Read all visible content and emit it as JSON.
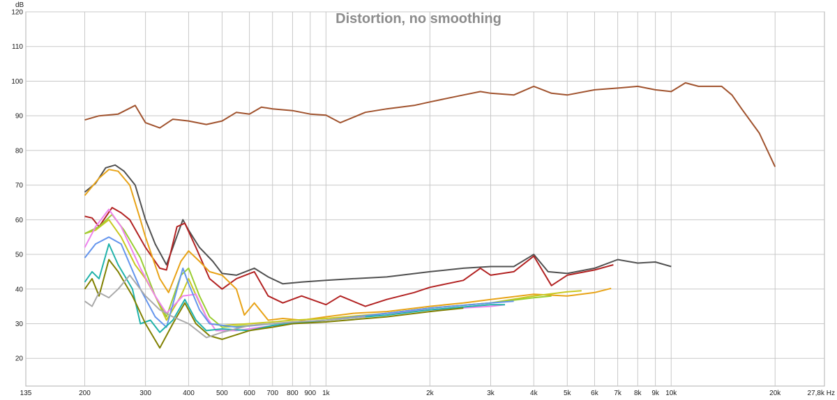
{
  "chart_data": {
    "type": "line",
    "title": "Distortion, no smoothing",
    "ylabel": "dB",
    "xunit": "Hz",
    "xscale": "log",
    "xlim": [
      135,
      27800
    ],
    "ylim": [
      12,
      120
    ],
    "grid": true,
    "x_tick_labels": [
      {
        "x": 135,
        "label": "135"
      },
      {
        "x": 200,
        "label": "200"
      },
      {
        "x": 300,
        "label": "300"
      },
      {
        "x": 400,
        "label": "400"
      },
      {
        "x": 500,
        "label": "500"
      },
      {
        "x": 600,
        "label": "600"
      },
      {
        "x": 700,
        "label": "700"
      },
      {
        "x": 800,
        "label": "800"
      },
      {
        "x": 900,
        "label": "900"
      },
      {
        "x": 1000,
        "label": "1k"
      },
      {
        "x": 2000,
        "label": "2k"
      },
      {
        "x": 3000,
        "label": "3k"
      },
      {
        "x": 4000,
        "label": "4k"
      },
      {
        "x": 5000,
        "label": "5k"
      },
      {
        "x": 6000,
        "label": "6k"
      },
      {
        "x": 7000,
        "label": "7k"
      },
      {
        "x": 8000,
        "label": "8k"
      },
      {
        "x": 9000,
        "label": "9k"
      },
      {
        "x": 10000,
        "label": "10k"
      },
      {
        "x": 20000,
        "label": "20k"
      },
      {
        "x": 27800,
        "label": "27,8k Hz"
      }
    ],
    "y_ticks": [
      20,
      30,
      40,
      50,
      60,
      70,
      80,
      90,
      100,
      110,
      120
    ],
    "series": [
      {
        "color": "#a0522d",
        "points": [
          [
            200,
            88.8
          ],
          [
            220,
            90
          ],
          [
            250,
            90.5
          ],
          [
            280,
            93
          ],
          [
            300,
            88
          ],
          [
            330,
            86.5
          ],
          [
            360,
            89
          ],
          [
            400,
            88.5
          ],
          [
            450,
            87.5
          ],
          [
            500,
            88.5
          ],
          [
            550,
            91
          ],
          [
            600,
            90.5
          ],
          [
            650,
            92.5
          ],
          [
            700,
            92
          ],
          [
            800,
            91.5
          ],
          [
            900,
            90.5
          ],
          [
            1000,
            90.2
          ],
          [
            1100,
            88
          ],
          [
            1300,
            91
          ],
          [
            1500,
            92
          ],
          [
            1800,
            93
          ],
          [
            2000,
            94
          ],
          [
            2500,
            96
          ],
          [
            2800,
            97
          ],
          [
            3000,
            96.5
          ],
          [
            3500,
            96
          ],
          [
            4000,
            98.5
          ],
          [
            4500,
            96.5
          ],
          [
            5000,
            96
          ],
          [
            6000,
            97.5
          ],
          [
            7000,
            98
          ],
          [
            8000,
            98.5
          ],
          [
            9000,
            97.5
          ],
          [
            10000,
            97
          ],
          [
            11000,
            99.5
          ],
          [
            12000,
            98.5
          ],
          [
            14000,
            98.5
          ],
          [
            15000,
            96
          ],
          [
            16000,
            92
          ],
          [
            18000,
            85
          ],
          [
            20000,
            75.3
          ]
        ]
      },
      {
        "color": "#505050",
        "points": [
          [
            200,
            68
          ],
          [
            215,
            70.5
          ],
          [
            230,
            75
          ],
          [
            245,
            75.8
          ],
          [
            260,
            74
          ],
          [
            280,
            70
          ],
          [
            300,
            60
          ],
          [
            320,
            53
          ],
          [
            345,
            47
          ],
          [
            360,
            52
          ],
          [
            385,
            60
          ],
          [
            400,
            57
          ],
          [
            430,
            52
          ],
          [
            470,
            48
          ],
          [
            500,
            44.5
          ],
          [
            550,
            44
          ],
          [
            620,
            46
          ],
          [
            680,
            43.5
          ],
          [
            750,
            41.5
          ],
          [
            850,
            42
          ],
          [
            1000,
            42.5
          ],
          [
            1200,
            43
          ],
          [
            1500,
            43.5
          ],
          [
            2000,
            45
          ],
          [
            2500,
            46
          ],
          [
            3000,
            46.5
          ],
          [
            3500,
            46.5
          ],
          [
            4000,
            50
          ],
          [
            4400,
            45
          ],
          [
            5000,
            44.5
          ],
          [
            6000,
            46
          ],
          [
            7000,
            48.5
          ],
          [
            8000,
            47.5
          ],
          [
            9000,
            47.8
          ],
          [
            10000,
            46.5
          ]
        ]
      },
      {
        "color": "#b22222",
        "points": [
          [
            200,
            61
          ],
          [
            210,
            60.5
          ],
          [
            220,
            58
          ],
          [
            240,
            63.5
          ],
          [
            255,
            62
          ],
          [
            270,
            60
          ],
          [
            300,
            52
          ],
          [
            330,
            46
          ],
          [
            345,
            45.5
          ],
          [
            370,
            58
          ],
          [
            390,
            59
          ],
          [
            420,
            52
          ],
          [
            460,
            43
          ],
          [
            500,
            40
          ],
          [
            550,
            43
          ],
          [
            620,
            45
          ],
          [
            680,
            38
          ],
          [
            750,
            36
          ],
          [
            850,
            38
          ],
          [
            1000,
            35.5
          ],
          [
            1100,
            38
          ],
          [
            1300,
            35
          ],
          [
            1500,
            37
          ],
          [
            1800,
            39
          ],
          [
            2000,
            40.5
          ],
          [
            2500,
            42.5
          ],
          [
            2800,
            46
          ],
          [
            3000,
            44
          ],
          [
            3500,
            45
          ],
          [
            4000,
            49.5
          ],
          [
            4500,
            41
          ],
          [
            5000,
            44
          ],
          [
            6000,
            45.5
          ],
          [
            6800,
            47
          ]
        ]
      },
      {
        "color": "#e8a317",
        "points": [
          [
            200,
            67
          ],
          [
            220,
            72
          ],
          [
            235,
            74.5
          ],
          [
            250,
            74
          ],
          [
            270,
            70
          ],
          [
            290,
            60
          ],
          [
            300,
            55
          ],
          [
            330,
            43
          ],
          [
            350,
            39
          ],
          [
            380,
            48
          ],
          [
            400,
            51
          ],
          [
            430,
            48
          ],
          [
            460,
            45
          ],
          [
            500,
            44
          ],
          [
            550,
            40
          ],
          [
            580,
            32.5
          ],
          [
            620,
            36
          ],
          [
            680,
            31
          ],
          [
            750,
            31.5
          ],
          [
            850,
            31
          ],
          [
            1000,
            32
          ],
          [
            1200,
            33
          ],
          [
            1500,
            33.5
          ],
          [
            2000,
            35
          ],
          [
            2500,
            36
          ],
          [
            3000,
            37
          ],
          [
            4000,
            38.5
          ],
          [
            5000,
            38
          ],
          [
            6000,
            39
          ],
          [
            6700,
            40.2
          ]
        ]
      },
      {
        "color": "#c8c820",
        "points": [
          [
            200,
            56
          ],
          [
            215,
            57
          ],
          [
            235,
            60
          ],
          [
            255,
            55
          ],
          [
            280,
            47
          ],
          [
            300,
            43
          ],
          [
            320,
            38
          ],
          [
            345,
            31
          ],
          [
            380,
            38
          ],
          [
            400,
            43
          ],
          [
            430,
            36
          ],
          [
            460,
            30
          ],
          [
            500,
            29.5
          ],
          [
            600,
            30
          ],
          [
            700,
            30.5
          ],
          [
            800,
            31
          ],
          [
            1000,
            31.5
          ],
          [
            1500,
            33
          ],
          [
            2000,
            34.5
          ],
          [
            3000,
            36
          ],
          [
            4000,
            38
          ],
          [
            5000,
            39.2
          ],
          [
            5500,
            39.5
          ]
        ]
      },
      {
        "color": "#9acd32",
        "points": [
          [
            200,
            56
          ],
          [
            220,
            58
          ],
          [
            240,
            61.5
          ],
          [
            260,
            57
          ],
          [
            290,
            49
          ],
          [
            320,
            38
          ],
          [
            345,
            32
          ],
          [
            380,
            44
          ],
          [
            400,
            46
          ],
          [
            430,
            38
          ],
          [
            460,
            32
          ],
          [
            500,
            29
          ],
          [
            600,
            29.5
          ],
          [
            700,
            30
          ],
          [
            1000,
            31
          ],
          [
            1500,
            33
          ],
          [
            2000,
            34.5
          ],
          [
            3000,
            36
          ],
          [
            4000,
            37.5
          ],
          [
            4500,
            38
          ]
        ]
      },
      {
        "color": "#ee82ee",
        "points": [
          [
            200,
            52
          ],
          [
            215,
            58
          ],
          [
            235,
            63
          ],
          [
            255,
            58
          ],
          [
            290,
            46
          ],
          [
            320,
            38
          ],
          [
            345,
            33
          ],
          [
            385,
            38
          ],
          [
            420,
            38.5
          ],
          [
            450,
            32
          ],
          [
            480,
            28
          ],
          [
            550,
            28
          ],
          [
            650,
            29
          ],
          [
            800,
            30
          ],
          [
            1000,
            31
          ],
          [
            1500,
            33
          ],
          [
            2000,
            34
          ],
          [
            3000,
            35
          ],
          [
            3300,
            35.5
          ]
        ]
      },
      {
        "color": "#6495ed",
        "points": [
          [
            200,
            49
          ],
          [
            215,
            53
          ],
          [
            235,
            55
          ],
          [
            255,
            53
          ],
          [
            290,
            40
          ],
          [
            320,
            32
          ],
          [
            345,
            29
          ],
          [
            385,
            46
          ],
          [
            400,
            41.5
          ],
          [
            430,
            34
          ],
          [
            460,
            30
          ],
          [
            550,
            29
          ],
          [
            700,
            30
          ],
          [
            1000,
            31
          ],
          [
            1500,
            33
          ],
          [
            2000,
            34.5
          ],
          [
            3000,
            36
          ],
          [
            3500,
            36.5
          ]
        ]
      },
      {
        "color": "#20b2aa",
        "points": [
          [
            200,
            42
          ],
          [
            210,
            45
          ],
          [
            220,
            43
          ],
          [
            235,
            53
          ],
          [
            250,
            47
          ],
          [
            275,
            40
          ],
          [
            290,
            30
          ],
          [
            310,
            31
          ],
          [
            330,
            27.5
          ],
          [
            360,
            31
          ],
          [
            390,
            37
          ],
          [
            420,
            31
          ],
          [
            450,
            28
          ],
          [
            500,
            28.5
          ],
          [
            600,
            28
          ],
          [
            700,
            29.5
          ],
          [
            1000,
            31
          ],
          [
            1500,
            32.5
          ],
          [
            2000,
            34
          ],
          [
            3000,
            35.5
          ],
          [
            3300,
            35.5
          ]
        ]
      },
      {
        "color": "#808000",
        "points": [
          [
            200,
            40
          ],
          [
            210,
            43
          ],
          [
            220,
            38
          ],
          [
            235,
            48.5
          ],
          [
            250,
            45
          ],
          [
            275,
            38
          ],
          [
            300,
            30
          ],
          [
            330,
            23
          ],
          [
            360,
            30
          ],
          [
            390,
            36
          ],
          [
            420,
            30
          ],
          [
            460,
            26.5
          ],
          [
            500,
            25.5
          ],
          [
            600,
            28
          ],
          [
            700,
            29
          ],
          [
            800,
            30
          ],
          [
            1000,
            30.5
          ],
          [
            1500,
            32
          ],
          [
            2000,
            33.5
          ],
          [
            2500,
            34.5
          ]
        ]
      },
      {
        "color": "#a9a9a9",
        "points": [
          [
            200,
            36.5
          ],
          [
            210,
            35
          ],
          [
            220,
            39
          ],
          [
            235,
            37.5
          ],
          [
            250,
            40
          ],
          [
            270,
            44
          ],
          [
            300,
            38
          ],
          [
            330,
            34
          ],
          [
            360,
            32
          ],
          [
            400,
            30
          ],
          [
            450,
            26
          ],
          [
            500,
            27.5
          ],
          [
            600,
            29.5
          ],
          [
            800,
            30.5
          ],
          [
            1000,
            31
          ],
          [
            1300,
            32
          ]
        ]
      }
    ]
  }
}
